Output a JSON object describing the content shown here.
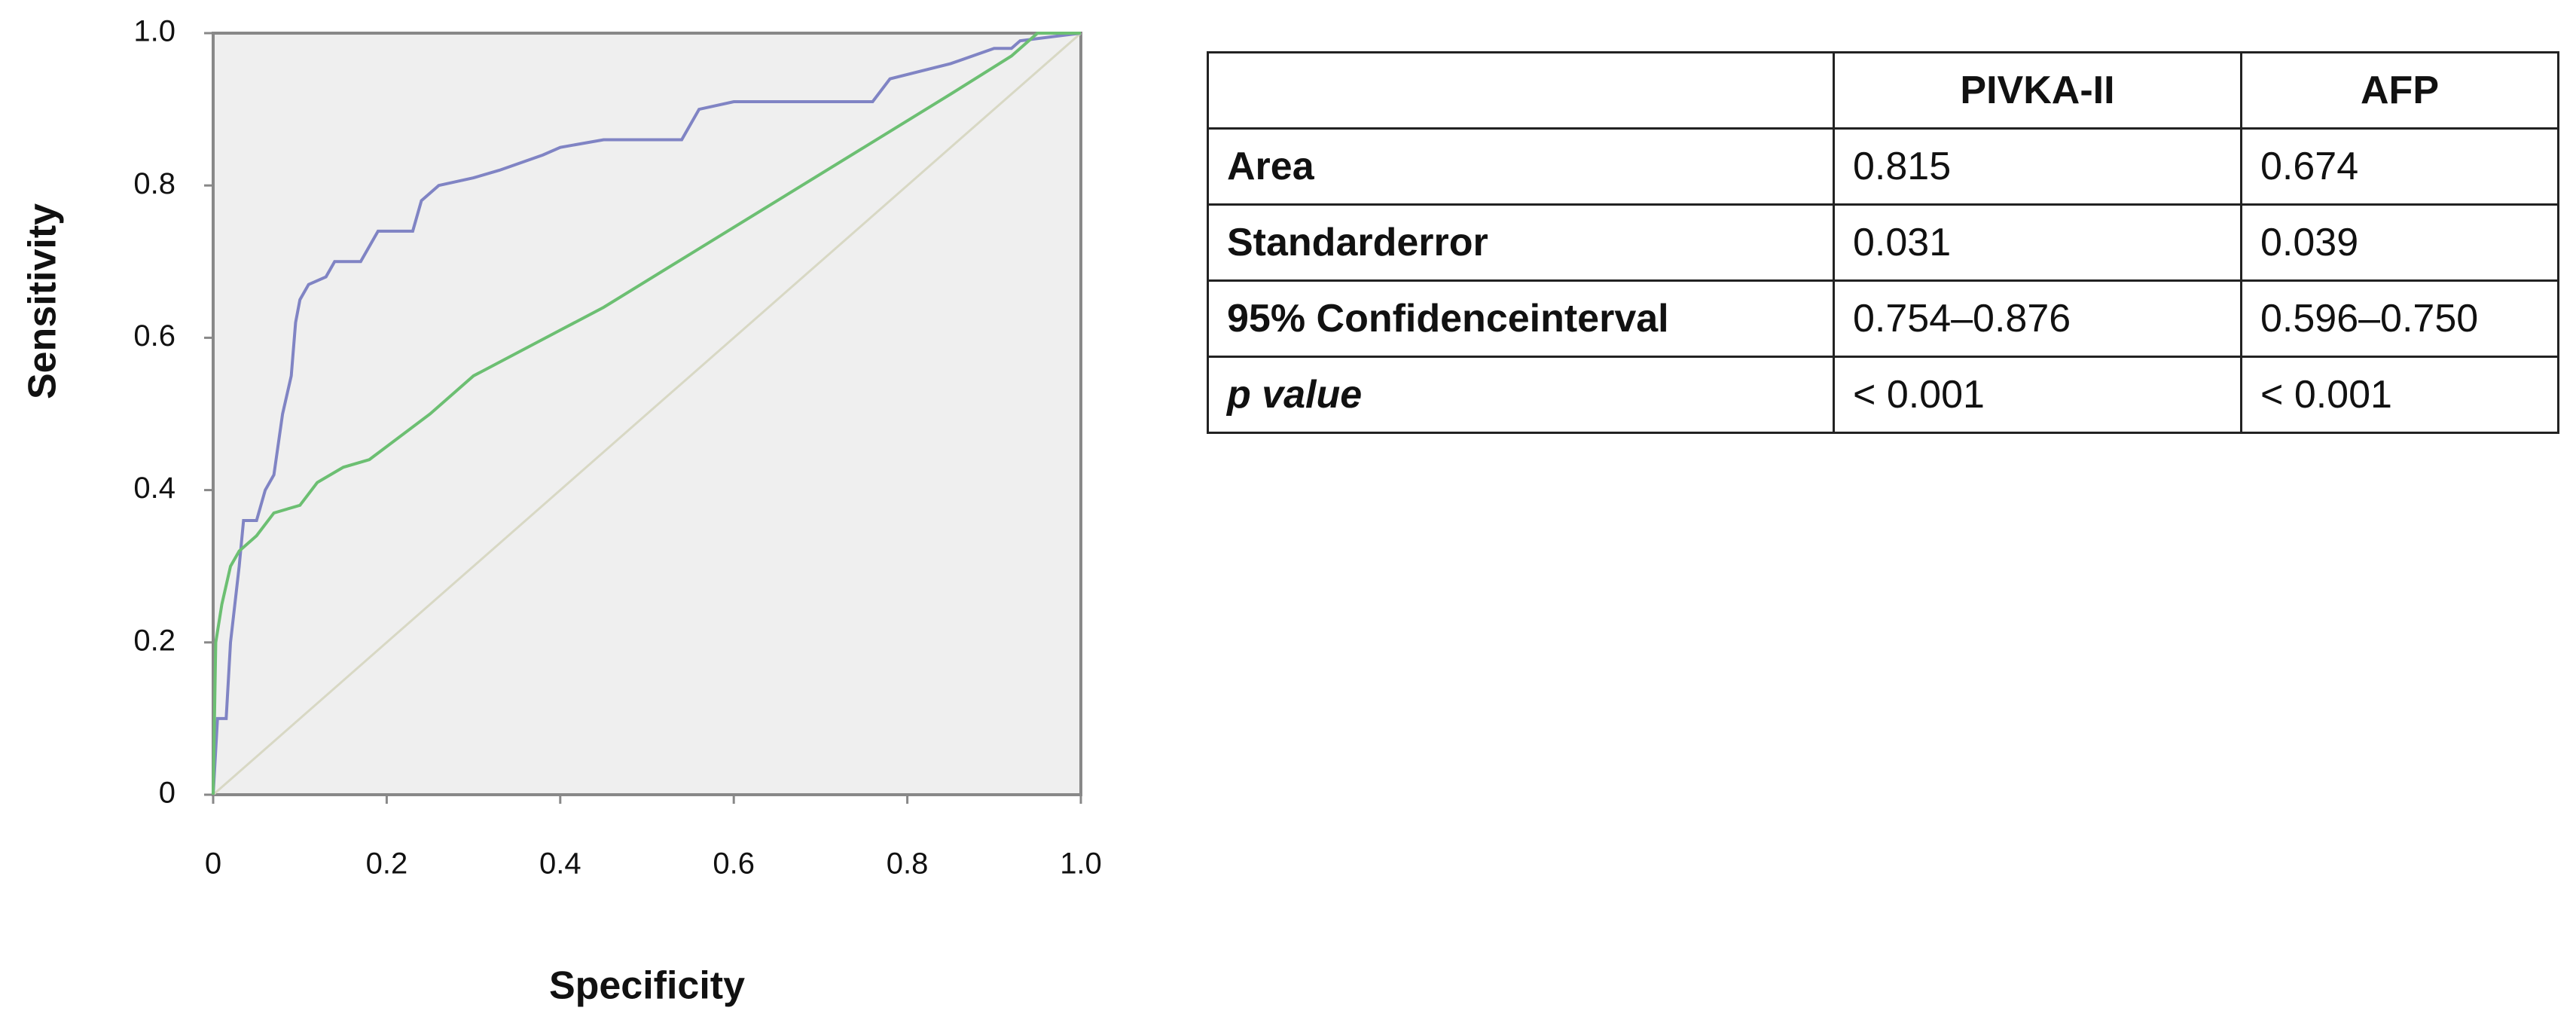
{
  "chart_data": {
    "type": "line",
    "x_label": "Specificity",
    "y_label": "Sensitivity",
    "xlim": [
      0,
      1
    ],
    "ylim": [
      0,
      1
    ],
    "xticks": [
      0,
      0.2,
      0.4,
      0.6,
      0.8,
      {
        "value": 1,
        "label": "1.0"
      }
    ],
    "yticks": [
      0,
      0.2,
      0.4,
      0.6,
      0.8,
      {
        "value": 1,
        "label": "1.0"
      }
    ],
    "series": [
      {
        "name": "PIVKA-II",
        "color": "#8084c4",
        "x": [
          0,
          0.005,
          0.015,
          0.02,
          0.03,
          0.035,
          0.05,
          0.06,
          0.07,
          0.08,
          0.09,
          0.095,
          0.1,
          0.11,
          0.13,
          0.14,
          0.17,
          0.19,
          0.23,
          0.24,
          0.26,
          0.3,
          0.33,
          0.38,
          0.4,
          0.45,
          0.54,
          0.56,
          0.6,
          0.76,
          0.78,
          0.85,
          0.9,
          0.92,
          0.93,
          1
        ],
        "values": [
          0,
          0.1,
          0.1,
          0.2,
          0.3,
          0.36,
          0.36,
          0.4,
          0.42,
          0.5,
          0.55,
          0.62,
          0.65,
          0.67,
          0.68,
          0.7,
          0.7,
          0.74,
          0.74,
          0.78,
          0.8,
          0.81,
          0.82,
          0.84,
          0.85,
          0.86,
          0.86,
          0.9,
          0.91,
          0.91,
          0.94,
          0.96,
          0.98,
          0.98,
          0.99,
          1
        ]
      },
      {
        "name": "AFP",
        "color": "#6cbf72",
        "x": [
          0,
          0.003,
          0.01,
          0.02,
          0.03,
          0.05,
          0.07,
          0.1,
          0.12,
          0.15,
          0.18,
          0.25,
          0.3,
          0.4,
          0.45,
          0.55,
          0.65,
          0.75,
          0.85,
          0.92,
          0.95,
          1
        ],
        "values": [
          0,
          0.2,
          0.25,
          0.3,
          0.32,
          0.34,
          0.37,
          0.38,
          0.41,
          0.43,
          0.44,
          0.5,
          0.55,
          0.61,
          0.64,
          0.71,
          0.78,
          0.85,
          0.92,
          0.97,
          1,
          1
        ]
      }
    ]
  },
  "table": {
    "header": [
      "PIVKA-II",
      "AFP"
    ],
    "rows": [
      [
        "Area",
        "0.815",
        "0.674"
      ],
      [
        "Standarderror",
        "0.031",
        "0.039"
      ],
      [
        "95% Confidenceinterval",
        "0.754–0.876",
        "0.596–0.750"
      ],
      [
        "p value",
        "< 0.001",
        "< 0.001"
      ]
    ]
  }
}
